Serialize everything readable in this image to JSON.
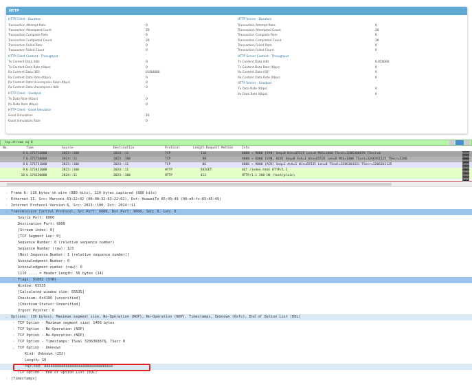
{
  "stats": {
    "title": "HTTP",
    "left": [
      {
        "section": "HTTP Client - Duration",
        "rows": [
          [
            "Transaction Attempt Rate",
            "0"
          ],
          [
            "Transaction Attempted Count",
            "20"
          ],
          [
            "Transaction Complete Rate",
            "0"
          ],
          [
            "Transaction Completed Count",
            "20"
          ],
          [
            "Transaction Failed Rate",
            "0"
          ],
          [
            "Transaction Failed Count",
            "0"
          ]
        ]
      },
      {
        "section": "HTTP Client Content - Throughput",
        "rows": [
          [
            "Tx Content Data (kB)",
            "0"
          ],
          [
            "Tx Content Data Rate (Kbps)",
            "0"
          ],
          [
            "Rx Content Data (kB)",
            "0.050000"
          ],
          [
            "Rx Content Data Rate (Kbps)",
            "0"
          ],
          [
            "Rx Content Data Uncompress Rate (Kbps)",
            "0"
          ],
          [
            "Rx Content Data Uncompress (kB)",
            "0"
          ]
        ]
      },
      {
        "section": "HTTP Client - Goodput",
        "rows": [
          [
            "Tx Data Rate (Kbps)",
            "0"
          ],
          [
            "Rx Data Rate (Kbps)",
            "0"
          ]
        ]
      },
      {
        "section": "HTTP Client - Good Simulator",
        "rows": [
          [
            "Good Simulators",
            "20"
          ],
          [
            "Good Simulators Rate",
            "0"
          ]
        ]
      }
    ],
    "right": [
      {
        "section": "HTTP Server - Duration",
        "rows": [
          [
            "Transaction Attempt Rate",
            "0"
          ],
          [
            "Transaction Attempted Count",
            "20"
          ],
          [
            "Transaction Complete Rate",
            "0"
          ],
          [
            "Transaction Completed Count",
            "20"
          ],
          [
            "Transaction Failed Rate",
            "0"
          ],
          [
            "Transaction Failed Count",
            "0"
          ]
        ]
      },
      {
        "section": "HTTP Server Content - Throughput",
        "rows": [
          [
            "Tx Content Data (kB)",
            "0.050000"
          ],
          [
            "Tx Content Data Rate (Kbps)",
            "0"
          ],
          [
            "Rx Content Data (kB)",
            "0"
          ],
          [
            "Rx Content Data Rate (Kbps)",
            "0"
          ]
        ]
      },
      {
        "section": "HTTP Server - Goodput",
        "rows": [
          [
            "Tx Data Rate (Kbps)",
            "0"
          ],
          [
            "Rx Data Rate (Kbps)",
            "0"
          ]
        ]
      }
    ]
  },
  "filter": {
    "value": "tcp.stream eq 0"
  },
  "packets": {
    "columns": [
      "No.",
      "Time",
      "Source",
      "Destination",
      "Protocol",
      "Length",
      "Request Method",
      "Info"
    ],
    "rows": [
      {
        "no": "6",
        "time": "6.171713000",
        "src": "2023::100",
        "dst": "2024::11",
        "proto": "TCP",
        "len": "110",
        "method": "",
        "info": "6000 → 9000 [SYN] Seq=0 Win=65535 Len=0 MSS=1400 TSval=3206368878 TSecr=0",
        "bg": "#a4a4a4"
      },
      {
        "no": "7",
        "time": "6.171718000",
        "src": "2024::11",
        "dst": "2023::100",
        "proto": "TCP",
        "len": "90",
        "method": "",
        "info": "9000 → 6000 [SYN, ACK] Seq=0 Ack=1 Win=65535 Len=0 MSS=1400 TSval=3206361125 TSecr=3206",
        "bg": "#b4b4b4"
      },
      {
        "no": "8",
        "time": "6.171731000",
        "src": "2023::100",
        "dst": "2024::11",
        "proto": "TCP",
        "len": "86",
        "method": "",
        "info": "6000 → 9000 [ACK] Seq=1 Ack=1 Win=65535 Len=0 TSval=3206364331 TSecr=3206361125",
        "bg": "#e2e2fa"
      },
      {
        "no": "9",
        "time": "6.172431000",
        "src": "2023::100",
        "dst": "2024::11",
        "proto": "HTTP",
        "len": "502",
        "method": "GET",
        "info": "GET /index.html HTTP/1.1",
        "bg": "#e4ffc7"
      },
      {
        "no": "10",
        "time": "6.174120000",
        "src": "2024::11",
        "dst": "2023::100",
        "proto": "HTTP",
        "len": "413",
        "method": "",
        "info": "HTTP/1.1 200 OK  (text/plain)",
        "bg": "#e4ffc7"
      }
    ]
  },
  "details": [
    {
      "t": "Frame 6: 110 bytes on wire (880 bits), 110 bytes captured (880 bits)",
      "i": 0,
      "a": ">"
    },
    {
      "t": "Ethernet II, Src: Marconi_63:22:02 (00:00:32:63:22:02), Dst: HuaweiTe_65:45:49 (00:e0:fc:65:45:49)",
      "i": 0,
      "a": ">"
    },
    {
      "t": "Internet Protocol Version 6, Src: 2023::100, Dst: 2024::11",
      "i": 0,
      "a": ">"
    },
    {
      "t": "Transmission Control Protocol, Src Port: 6000, Dst Port: 9000, Seq: 0, Len: 0",
      "i": 0,
      "a": "v",
      "s": "sel"
    },
    {
      "t": "Source Port: 6000",
      "i": 1
    },
    {
      "t": "Destination Port: 9000",
      "i": 1
    },
    {
      "t": "[Stream index: 0]",
      "i": 1
    },
    {
      "t": "[TCP Segment Len: 0]",
      "i": 1
    },
    {
      "t": "Sequence Number: 0    (relative sequence number)",
      "i": 1
    },
    {
      "t": "Sequence Number (raw): 123",
      "i": 1
    },
    {
      "t": "[Next Sequence Number: 1    (relative sequence number)]",
      "i": 1
    },
    {
      "t": "Acknowledgment Number: 0",
      "i": 1
    },
    {
      "t": "Acknowledgment number (raw): 0",
      "i": 1
    },
    {
      "t": "1110 .... = Header Length: 56 bytes (14)",
      "i": 1
    },
    {
      "t": "Flags: 0x002 (SYN)",
      "i": 1,
      "a": ">",
      "s": "sel"
    },
    {
      "t": "Window: 65535",
      "i": 1
    },
    {
      "t": "[Calculated window size: 65535]",
      "i": 1
    },
    {
      "t": "Checksum: 0x4196 [unverified]",
      "i": 1
    },
    {
      "t": "[Checksum Status: Unverified]",
      "i": 1
    },
    {
      "t": "Urgent Pointer: 0",
      "i": 1
    },
    {
      "t": "Options: (36 bytes), Maximum segment size, No-Operation (NOP), No-Operation (NOP), Timestamps, Unknown (0xfc), End of Option List (EOL)",
      "i": 0,
      "a": "v",
      "s": "soft"
    },
    {
      "t": "TCP Option - Maximum segment size: 1400 bytes",
      "i": 1,
      "a": ">"
    },
    {
      "t": "TCP Option - No-Operation (NOP)",
      "i": 1,
      "a": ">"
    },
    {
      "t": "TCP Option - No-Operation (NOP)",
      "i": 1,
      "a": ">"
    },
    {
      "t": "TCP Option - Timestamps: TSval 3206368878, TSecr 0",
      "i": 1,
      "a": ">"
    },
    {
      "t": "TCP Option - Unknown",
      "i": 1,
      "a": "v"
    },
    {
      "t": "Kind: Unknown (252)",
      "i": 2
    },
    {
      "t": "Length: 10",
      "i": 2
    },
    {
      "t": "Payload: aaaaaaaaaaaaaaaaaaaaaaaaaaaaaaaa",
      "i": 2,
      "s": "soft"
    },
    {
      "t": "TCP Option - End of Option List (EOL)",
      "i": 1,
      "a": ">"
    },
    {
      "t": "[Timestamps]",
      "i": 0,
      "a": ">"
    }
  ]
}
